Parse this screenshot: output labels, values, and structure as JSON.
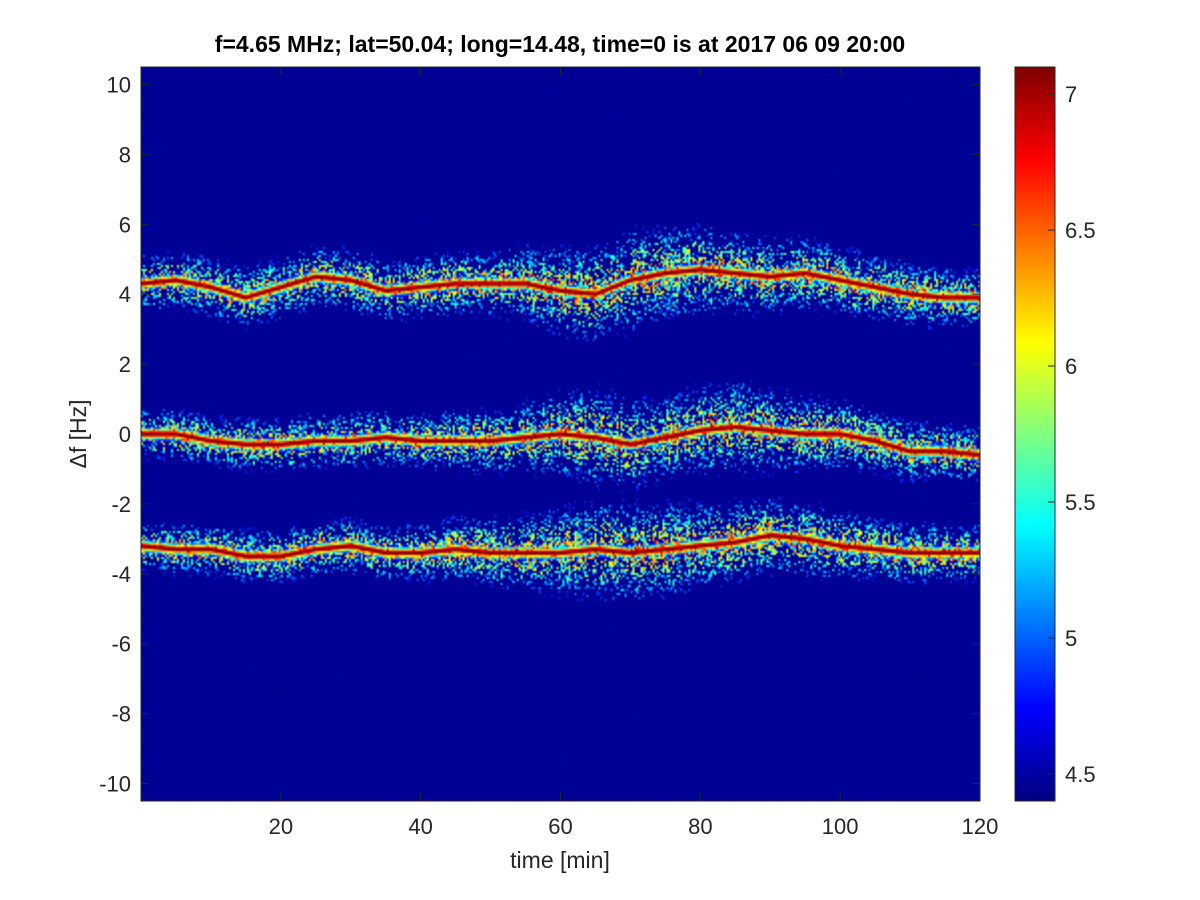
{
  "chart_data": {
    "type": "heatmap",
    "title": "f=4.65 MHz;  lat=50.04; long=14.48, time=0 is at 2017 06 09 20:00",
    "xlabel": "time [min]",
    "ylabel": "Δf [Hz]",
    "xlim": [
      0,
      120
    ],
    "ylim": [
      -10.5,
      10.5
    ],
    "xticks": [
      20,
      40,
      60,
      80,
      100,
      120
    ],
    "yticks": [
      10,
      8,
      6,
      4,
      2,
      0,
      -2,
      -4,
      -6,
      -8,
      -10
    ],
    "colorbar": {
      "colormap": "jet",
      "limits": [
        4.4,
        7.1
      ],
      "ticks": [
        7,
        6.5,
        6,
        5.5,
        5,
        4.5
      ]
    },
    "background_value": 4.45,
    "grid": false,
    "bands": [
      {
        "name": "upper trace",
        "center_f": [
          [
            0,
            4.3
          ],
          [
            5,
            4.4
          ],
          [
            10,
            4.2
          ],
          [
            15,
            3.9
          ],
          [
            20,
            4.2
          ],
          [
            25,
            4.5
          ],
          [
            30,
            4.4
          ],
          [
            35,
            4.1
          ],
          [
            40,
            4.2
          ],
          [
            45,
            4.3
          ],
          [
            50,
            4.3
          ],
          [
            55,
            4.3
          ],
          [
            60,
            4.1
          ],
          [
            65,
            4.0
          ],
          [
            70,
            4.4
          ],
          [
            75,
            4.6
          ],
          [
            80,
            4.7
          ],
          [
            85,
            4.6
          ],
          [
            90,
            4.5
          ],
          [
            95,
            4.6
          ],
          [
            100,
            4.4
          ],
          [
            105,
            4.2
          ],
          [
            110,
            4.0
          ],
          [
            115,
            3.9
          ],
          [
            120,
            3.9
          ]
        ],
        "spread_hz": [
          [
            0,
            0.9
          ],
          [
            30,
            1.0
          ],
          [
            50,
            1.0
          ],
          [
            60,
            1.4
          ],
          [
            70,
            1.6
          ],
          [
            80,
            1.4
          ],
          [
            90,
            1.2
          ],
          [
            100,
            1.1
          ],
          [
            110,
            1.0
          ],
          [
            120,
            0.9
          ]
        ]
      },
      {
        "name": "middle trace",
        "center_f": [
          [
            0,
            0.0
          ],
          [
            5,
            0.0
          ],
          [
            10,
            -0.2
          ],
          [
            15,
            -0.3
          ],
          [
            20,
            -0.3
          ],
          [
            25,
            -0.2
          ],
          [
            30,
            -0.2
          ],
          [
            35,
            -0.1
          ],
          [
            40,
            -0.2
          ],
          [
            45,
            -0.2
          ],
          [
            50,
            -0.2
          ],
          [
            55,
            -0.1
          ],
          [
            60,
            0.0
          ],
          [
            65,
            -0.1
          ],
          [
            70,
            -0.3
          ],
          [
            75,
            -0.1
          ],
          [
            80,
            0.1
          ],
          [
            85,
            0.2
          ],
          [
            90,
            0.1
          ],
          [
            95,
            0.0
          ],
          [
            100,
            0.0
          ],
          [
            105,
            -0.2
          ],
          [
            110,
            -0.5
          ],
          [
            115,
            -0.5
          ],
          [
            120,
            -0.6
          ]
        ],
        "spread_hz": [
          [
            0,
            0.8
          ],
          [
            40,
            0.9
          ],
          [
            55,
            1.1
          ],
          [
            65,
            1.6
          ],
          [
            75,
            1.3
          ],
          [
            85,
            1.5
          ],
          [
            95,
            1.2
          ],
          [
            105,
            1.0
          ],
          [
            120,
            0.9
          ]
        ]
      },
      {
        "name": "lower trace",
        "center_f": [
          [
            0,
            -3.2
          ],
          [
            5,
            -3.3
          ],
          [
            10,
            -3.3
          ],
          [
            15,
            -3.5
          ],
          [
            20,
            -3.5
          ],
          [
            25,
            -3.3
          ],
          [
            30,
            -3.2
          ],
          [
            35,
            -3.4
          ],
          [
            40,
            -3.4
          ],
          [
            45,
            -3.3
          ],
          [
            50,
            -3.4
          ],
          [
            55,
            -3.4
          ],
          [
            60,
            -3.4
          ],
          [
            65,
            -3.3
          ],
          [
            70,
            -3.4
          ],
          [
            75,
            -3.3
          ],
          [
            80,
            -3.2
          ],
          [
            85,
            -3.1
          ],
          [
            90,
            -2.9
          ],
          [
            95,
            -3.0
          ],
          [
            100,
            -3.2
          ],
          [
            105,
            -3.3
          ],
          [
            110,
            -3.4
          ],
          [
            115,
            -3.4
          ],
          [
            120,
            -3.4
          ]
        ],
        "spread_hz": [
          [
            0,
            0.8
          ],
          [
            40,
            0.9
          ],
          [
            55,
            1.2
          ],
          [
            65,
            1.6
          ],
          [
            75,
            1.5
          ],
          [
            85,
            1.3
          ],
          [
            95,
            1.2
          ],
          [
            105,
            1.0
          ],
          [
            120,
            0.9
          ]
        ]
      }
    ]
  }
}
